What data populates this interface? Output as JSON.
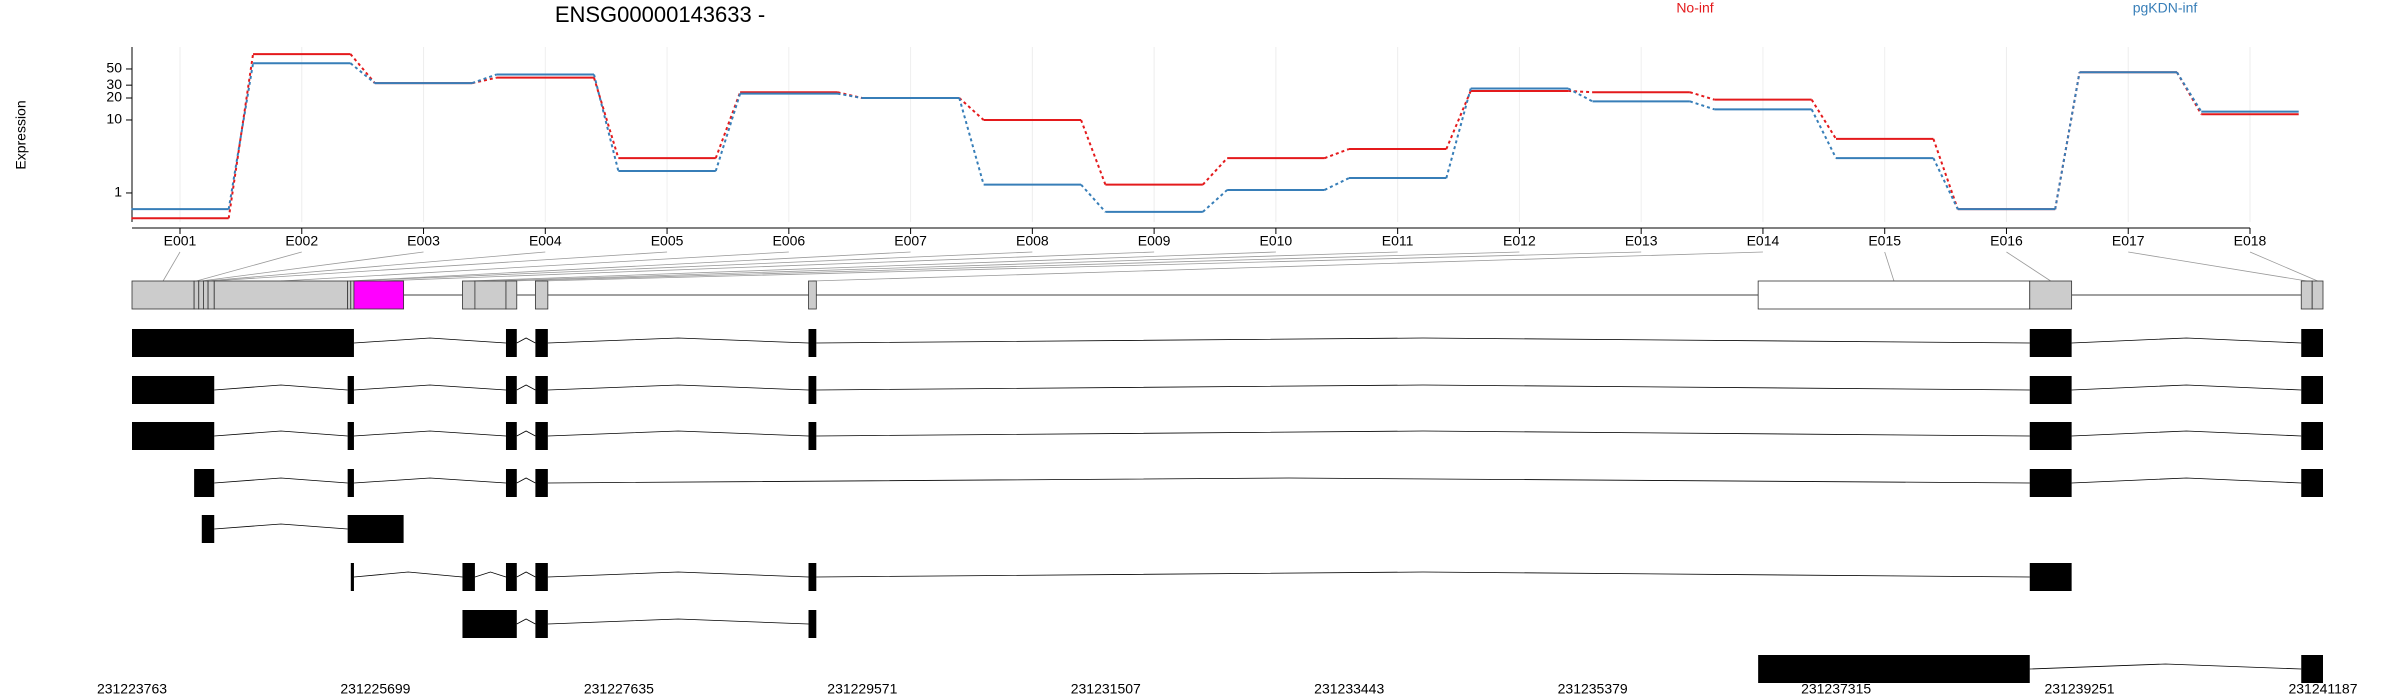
{
  "chart_data": {
    "type": "line",
    "title": "ENSG00000143633 -",
    "y_label": "Expression",
    "log_y": true,
    "categories": [
      "E001",
      "E002",
      "E003",
      "E004",
      "E005",
      "E006",
      "E007",
      "E008",
      "E009",
      "E010",
      "E011",
      "E012",
      "E013",
      "E014",
      "E015",
      "E016",
      "E017",
      "E018"
    ],
    "series": [
      {
        "name": "No-inf",
        "color": "#e41a1c",
        "values": [
          0.45,
          80,
          32,
          38,
          3,
          24,
          20,
          10,
          1.3,
          3,
          4,
          25,
          24,
          19,
          5.5,
          0.6,
          45,
          12
        ]
      },
      {
        "name": "pgKDN-inf",
        "color": "#377eb8",
        "values": [
          0.6,
          60,
          32,
          42,
          2,
          23,
          20,
          1.3,
          0.55,
          1.1,
          1.6,
          27,
          18,
          14,
          3,
          0.6,
          45,
          13
        ]
      }
    ],
    "ylim": [
      0.4,
      100
    ],
    "yticks": [
      1,
      10,
      20,
      30,
      50
    ]
  },
  "gene_model": {
    "xlim": [
      231223763,
      231241187
    ],
    "xticks": [
      231223763,
      231225699,
      231227635,
      231229571,
      231231507,
      231233443,
      231235379,
      231237315,
      231239251,
      231241187
    ],
    "bins": [
      [
        231223763,
        231224257
      ],
      [
        231224257,
        231224294
      ],
      [
        231224294,
        231224331
      ],
      [
        231224331,
        231224368
      ],
      [
        231224368,
        231224417
      ],
      [
        231224417,
        231225478
      ],
      [
        231225478,
        231225503
      ],
      [
        231225503,
        231225528
      ],
      [
        231225528,
        231225923
      ],
      [
        231226391,
        231226490
      ],
      [
        231226490,
        231226737
      ],
      [
        231226737,
        231226823
      ],
      [
        231226971,
        231227070
      ],
      [
        231229143,
        231229205
      ],
      [
        231236695,
        231238855
      ],
      [
        231238855,
        231239188
      ],
      [
        231241014,
        231241101
      ],
      [
        231241101,
        231241187
      ]
    ],
    "bin_colors": [
      "#cccccc",
      "#cccccc",
      "#cccccc",
      "#cccccc",
      "#cccccc",
      "#cccccc",
      "#cccccc",
      "#cccccc",
      "#ff00ff",
      "#cccccc",
      "#cccccc",
      "#cccccc",
      "#cccccc",
      "#cccccc",
      "#ffffff",
      "#cccccc",
      "#cccccc",
      "#cccccc"
    ],
    "transcripts": [
      [
        [
          231223763,
          231225528
        ],
        [
          231226737,
          231226823
        ],
        [
          231226971,
          231227070
        ],
        [
          231229143,
          231229205
        ],
        [
          231238855,
          231239188
        ],
        [
          231241014,
          231241187
        ]
      ],
      [
        [
          231223763,
          231224417
        ],
        [
          231225478,
          231225528
        ],
        [
          231226737,
          231226823
        ],
        [
          231226971,
          231227070
        ],
        [
          231229143,
          231229205
        ],
        [
          231238855,
          231239188
        ],
        [
          231241014,
          231241187
        ]
      ],
      [
        [
          231223763,
          231224417
        ],
        [
          231225478,
          231225528
        ],
        [
          231226737,
          231226823
        ],
        [
          231226971,
          231227070
        ],
        [
          231229143,
          231229205
        ],
        [
          231238855,
          231239188
        ],
        [
          231241014,
          231241187
        ]
      ],
      [
        [
          231224257,
          231224417
        ],
        [
          231225478,
          231225528
        ],
        [
          231226737,
          231226823
        ],
        [
          231226971,
          231227070
        ],
        [
          231238855,
          231239188
        ],
        [
          231241014,
          231241187
        ]
      ],
      [
        [
          231224318,
          231224417
        ],
        [
          231225478,
          231225923
        ]
      ],
      [
        [
          231225503,
          231225528
        ],
        [
          231226391,
          231226490
        ],
        [
          231226737,
          231226823
        ],
        [
          231226971,
          231227070
        ],
        [
          231229143,
          231229205
        ],
        [
          231238855,
          231239188
        ]
      ],
      [
        [
          231226391,
          231226823
        ],
        [
          231226971,
          231227070
        ],
        [
          231229143,
          231229205
        ]
      ],
      [
        [
          231236695,
          231238855
        ],
        [
          231241014,
          231241187
        ]
      ]
    ]
  }
}
